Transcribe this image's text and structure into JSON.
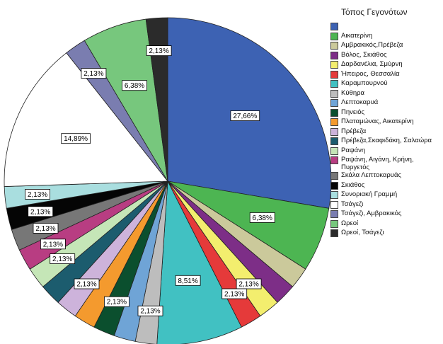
{
  "chart_data": {
    "type": "pie",
    "legend_title": "Τόπος Γεγονότων",
    "legend_position": "right",
    "start_angle_deg": 90,
    "direction": "clockwise",
    "slices": [
      {
        "label": "",
        "value": 27.66,
        "data_label": "27,66%",
        "color": "#3D62B3"
      },
      {
        "label": "Αικατερίνη",
        "value": 6.38,
        "data_label": "6,38%",
        "color": "#4DB552"
      },
      {
        "label": "Αμβρακικός,Πρέβεζα",
        "value": 2.13,
        "data_label": "",
        "color": "#CBC99B"
      },
      {
        "label": "Βόλος, Σκιάθος",
        "value": 2.13,
        "data_label": "",
        "color": "#7D2E87"
      },
      {
        "label": "Δαρδανέλια, Σμύρνη",
        "value": 2.13,
        "data_label": "2,13%",
        "color": "#F3EE6E"
      },
      {
        "label": "Ήπειρος, Θεσσαλία",
        "value": 2.13,
        "data_label": "2,13%",
        "color": "#E53A3A"
      },
      {
        "label": "Καραμπουρνού",
        "value": 8.51,
        "data_label": "8,51%",
        "color": "#41C1C2"
      },
      {
        "label": "Κύθηρα",
        "value": 2.13,
        "data_label": "2,13%",
        "color": "#BDBDBD"
      },
      {
        "label": "Λεπτοκαρυά",
        "value": 2.13,
        "data_label": "",
        "color": "#6FA4D6"
      },
      {
        "label": "Πηνειός",
        "value": 2.13,
        "data_label": "2,13%",
        "color": "#0B4F2E"
      },
      {
        "label": "Πλαταμώνας, Αικατερίνη",
        "value": 2.13,
        "data_label": "",
        "color": "#F49A2E"
      },
      {
        "label": "Πρέβεζα",
        "value": 2.13,
        "data_label": "2,13%",
        "color": "#CDB3DB"
      },
      {
        "label": "Πρέβεζα,Σκαφιδάκη, Σαλαώρα",
        "value": 2.13,
        "data_label": "",
        "color": "#1C5C6E"
      },
      {
        "label": "Ραψάνη",
        "value": 2.13,
        "data_label": "2,13%",
        "color": "#C5E6B7"
      },
      {
        "label": "Ραψάνη, Αιγάνη, Κρήνη, Πυργετός",
        "value": 2.13,
        "data_label": "2,13%",
        "color": "#B83D82"
      },
      {
        "label": "Σκάλα Λεπτοκαρυάς",
        "value": 2.13,
        "data_label": "2,13%",
        "color": "#777777"
      },
      {
        "label": "Σκιάθος",
        "value": 2.13,
        "data_label": "2,13%",
        "color": "#050505"
      },
      {
        "label": "Συνοριακή Γραμμή",
        "value": 2.13,
        "data_label": "2,13%",
        "color": "#A9DEDF"
      },
      {
        "label": "Τσάγεζι",
        "value": 14.89,
        "data_label": "14,89%",
        "color": "#FFFFFF"
      },
      {
        "label": "Τσάγεζι, Αμβρακικός",
        "value": 2.13,
        "data_label": "2,13%",
        "color": "#7A7DB0"
      },
      {
        "label": "Ωρεοί",
        "value": 6.38,
        "data_label": "6,38%",
        "color": "#77C77D"
      },
      {
        "label": "Ωρεοί, Τσάγεζι",
        "value": 2.13,
        "data_label": "2,13%",
        "color": "#2B2B2B"
      }
    ]
  }
}
